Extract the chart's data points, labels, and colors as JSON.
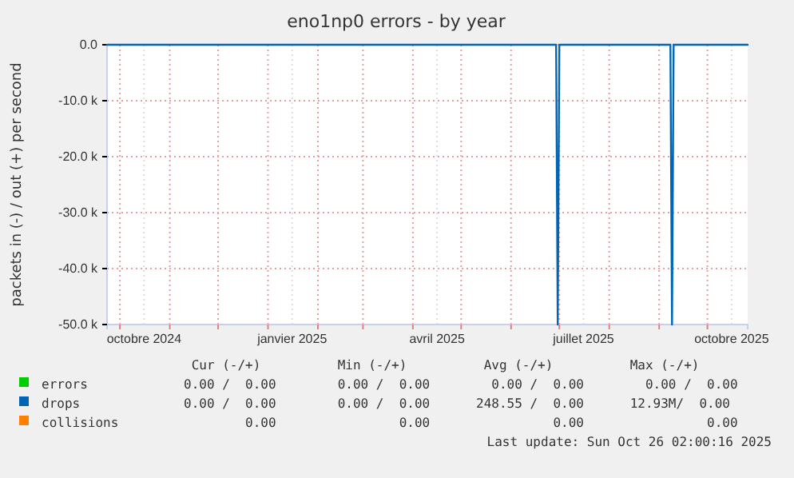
{
  "chart_data": {
    "type": "line",
    "title": "eno1np0 errors - by year",
    "ylabel": "packets in (-) / out (+) per second",
    "series": [
      {
        "name": "errors",
        "color": "#00cc00"
      },
      {
        "name": "collisions",
        "color": "#ff8000"
      },
      {
        "name": "drops",
        "color": "#0066b3",
        "x": [
          "2024-09-23",
          "2025-06-29",
          "2025-06-30",
          "2025-07-01",
          "2025-09-08",
          "2025-09-09",
          "2025-09-10",
          "2025-10-26"
        ],
        "values": [
          0,
          0,
          -50000,
          0,
          0,
          -50000,
          0,
          0
        ]
      }
    ],
    "xlim": [
      "2024-09-23",
      "2025-10-26"
    ],
    "xticks": [
      {
        "value": "2024-10-01",
        "label": null
      },
      {
        "value": "2024-10-16",
        "label": "octobre 2024"
      },
      {
        "value": "2024-11-01",
        "label": null
      },
      {
        "value": "2024-12-01",
        "label": null
      },
      {
        "value": "2025-01-01",
        "label": null
      },
      {
        "value": "2025-01-16",
        "label": "janvier 2025"
      },
      {
        "value": "2025-02-01",
        "label": null
      },
      {
        "value": "2025-03-01",
        "label": null
      },
      {
        "value": "2025-04-01",
        "label": null
      },
      {
        "value": "2025-04-16",
        "label": "avril 2025"
      },
      {
        "value": "2025-05-01",
        "label": null
      },
      {
        "value": "2025-06-01",
        "label": null
      },
      {
        "value": "2025-07-01",
        "label": null
      },
      {
        "value": "2025-07-16",
        "label": "juillet 2025"
      },
      {
        "value": "2025-08-01",
        "label": null
      },
      {
        "value": "2025-09-01",
        "label": null
      },
      {
        "value": "2025-10-01",
        "label": null
      },
      {
        "value": "2025-10-16",
        "label": "octobre 2025"
      }
    ],
    "ylim": [
      -50000,
      0
    ],
    "yticks": [
      {
        "value": -50000,
        "label": "-50.0 k"
      },
      {
        "value": -40000,
        "label": "-40.0 k"
      },
      {
        "value": -30000,
        "label": "-30.0 k"
      },
      {
        "value": -20000,
        "label": "-20.0 k"
      },
      {
        "value": -10000,
        "label": "-10.0 k"
      },
      {
        "value": 0,
        "label": "0.0"
      }
    ],
    "grid": true,
    "legend": "bottom",
    "annotations": [
      " Cur (-/+)          Min (-/+)          Avg (-/+)          Max (-/+)",
      "0.00 /  0.00        0.00 /  0.00        0.00 /  0.00        0.00 /  0.00",
      "        0.00                0.00                0.00                0.00",
      "0.00 /  0.00        0.00 /  0.00      248.55 /  0.00      12.93M/  0.00",
      "Last update: Sun Oct 26 02:00:16 2025"
    ]
  }
}
